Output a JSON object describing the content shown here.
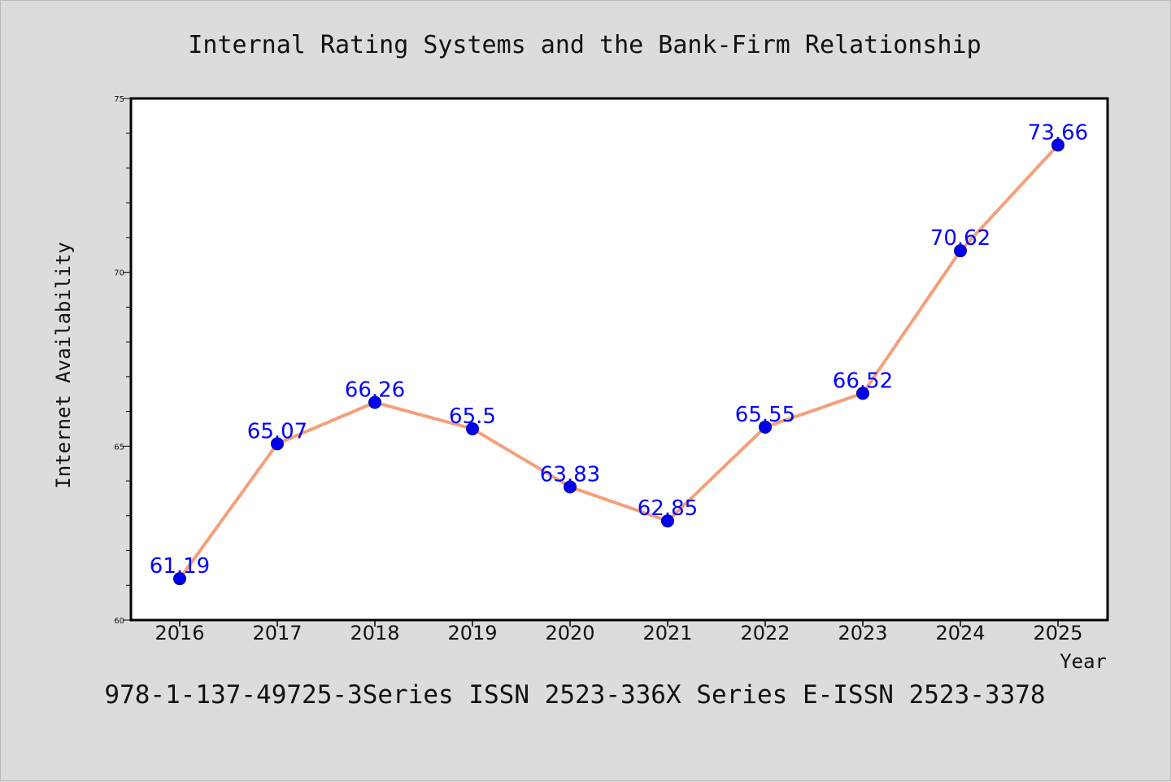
{
  "chart_data": {
    "type": "line",
    "title": "Internal Rating Systems and the Bank-Firm Relationship",
    "xlabel": "Year",
    "ylabel": "Internet Availability",
    "categories": [
      "2016",
      "2017",
      "2018",
      "2019",
      "2020",
      "2021",
      "2022",
      "2023",
      "2024",
      "2025"
    ],
    "series": [
      {
        "values": [
          61.19,
          65.07,
          66.26,
          65.5,
          63.83,
          62.85,
          65.55,
          66.52,
          70.62,
          73.66
        ],
        "data_labels": [
          "61.19",
          "65.07",
          "66.26",
          "65.5",
          "63.83",
          "62.85",
          "65.55",
          "66.52",
          "70.62",
          "73.66"
        ],
        "line_color": "#f4a07a",
        "marker_color": "#0000ee"
      }
    ],
    "ylim": [
      60,
      75
    ],
    "yticks": [
      "60",
      "65",
      "70",
      "75"
    ],
    "grid": false,
    "label_color": "#0000ff"
  },
  "footer": "978-1-137-49725-3Series ISSN 2523-336X Series E-ISSN 2523-3378"
}
